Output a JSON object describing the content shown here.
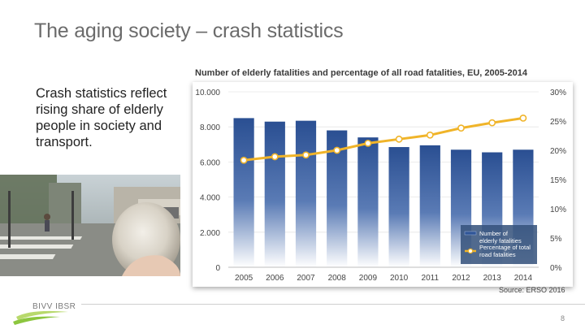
{
  "slide": {
    "title": "The aging society – crash statistics",
    "body_text": "Crash statistics reflect rising share of elderly people in society and transport.",
    "source": "Source: ERSO 2016",
    "logo_text": "BIVV IBSR",
    "page_number": "8"
  },
  "colors": {
    "bar": "#2f5597",
    "bar_light": "#ffffff",
    "line": "#f0b429",
    "marker_fill": "#ffffff",
    "title_gray": "#6b6b6b",
    "legend_bg": "#33507a"
  },
  "chart_data": {
    "type": "bar",
    "title": "Number of elderly fatalities and percentage of all road fatalities, EU, 2005-2014",
    "categories": [
      "2005",
      "2006",
      "2007",
      "2008",
      "2009",
      "2010",
      "2011",
      "2012",
      "2013",
      "2014"
    ],
    "series": [
      {
        "name": "Number of elderly fatalities",
        "type": "bar",
        "axis": "left",
        "values": [
          8500,
          8300,
          8350,
          7800,
          7400,
          6850,
          6950,
          6700,
          6550,
          6700
        ]
      },
      {
        "name": "Percentage of total road fatalities",
        "type": "line",
        "axis": "right",
        "values": [
          18.3,
          18.9,
          19.2,
          20.0,
          21.2,
          21.9,
          22.6,
          23.8,
          24.7,
          25.5
        ]
      }
    ],
    "left_axis": {
      "ylim": [
        0,
        10000
      ],
      "ticks": [
        "0",
        "2.000",
        "4.000",
        "6.000",
        "8.000",
        "10.000"
      ],
      "tick_values": [
        0,
        2000,
        4000,
        6000,
        8000,
        10000
      ]
    },
    "right_axis": {
      "ylim": [
        0,
        30
      ],
      "ticks": [
        "0%",
        "5%",
        "10%",
        "15%",
        "20%",
        "25%",
        "30%"
      ],
      "tick_values": [
        0,
        5,
        10,
        15,
        20,
        25,
        30
      ]
    },
    "legend": {
      "placement": "bottom-right",
      "items": [
        "Number of elderly fatalities",
        "Percentage of total road fatalities"
      ]
    }
  }
}
